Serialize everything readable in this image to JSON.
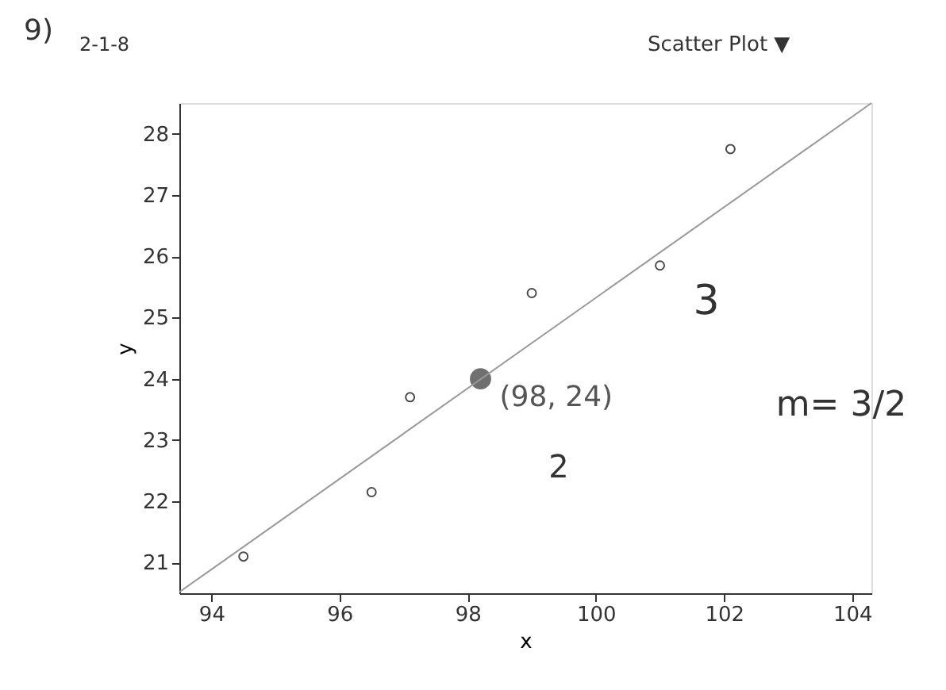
{
  "chart_data": {
    "type": "scatter",
    "xlabel": "x",
    "ylabel": "y",
    "xlim": [
      93.5,
      104.3
    ],
    "ylim": [
      20.5,
      28.5
    ],
    "xticks": [
      94,
      96,
      98,
      100,
      102,
      104
    ],
    "yticks": [
      21,
      22,
      23,
      24,
      25,
      26,
      27,
      28
    ],
    "grid": false,
    "series": [
      {
        "marker": "circle",
        "color": "#000000",
        "x": [
          94.5,
          96.5,
          97.1,
          99.0,
          101.0,
          102.1
        ],
        "values": [
          21.1,
          22.15,
          23.7,
          25.4,
          25.85,
          27.75
        ]
      },
      {
        "marker": "circle",
        "color": "#707070",
        "x": [
          98.2
        ],
        "values": [
          24.0
        ]
      },
      {
        "type": "line",
        "color": "#999999",
        "x": [
          93.5,
          104.3
        ],
        "values": [
          20.52,
          28.5
        ]
      }
    ],
    "annotations": [
      "9)",
      "2-1-8",
      "Scatter Plot ▼",
      "3",
      "2",
      "m= 3/2",
      {
        "text": "(98, 24)",
        "x": 98.2,
        "y": 24
      }
    ]
  }
}
